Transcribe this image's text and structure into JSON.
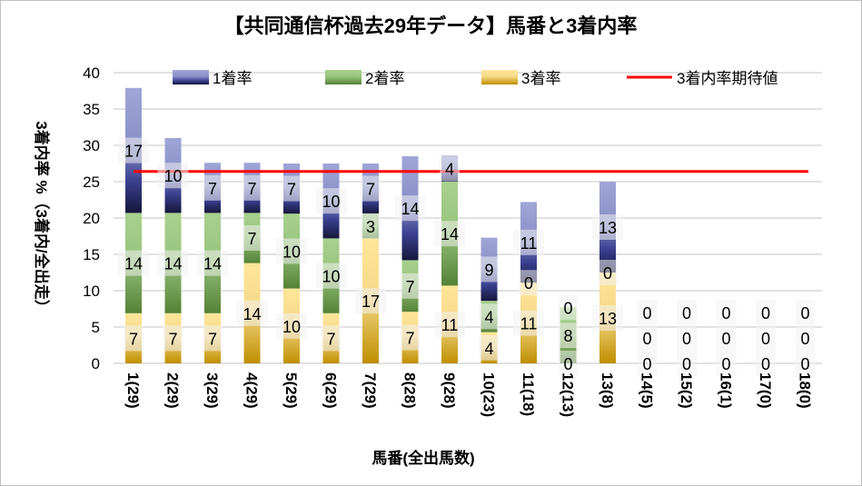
{
  "chart_data": {
    "type": "bar",
    "stacked": true,
    "title": "【共同通信杯過去29年データ】馬番と3着内率",
    "xlabel": "馬番(全出馬数)",
    "ylabel": "3着内率 %（3着内/全出走）",
    "ylim": [
      0,
      40
    ],
    "yticks": [
      0,
      5,
      10,
      15,
      20,
      25,
      30,
      35,
      40
    ],
    "grid": true,
    "legend_position": "top",
    "categories": [
      "1(29)",
      "2(29)",
      "3(29)",
      "4(29)",
      "5(29)",
      "6(29)",
      "7(29)",
      "8(28)",
      "9(28)",
      "10(23)",
      "11(18)",
      "12(13)",
      "13(8)",
      "14(5)",
      "15(2)",
      "16(1)",
      "17(0)",
      "18(0)"
    ],
    "series": [
      {
        "name": "3着率",
        "color": "#d4a017",
        "values": [
          6.9,
          6.9,
          6.9,
          13.8,
          10.3,
          6.9,
          17.2,
          7.1,
          10.7,
          4.3,
          11.1,
          0,
          12.5,
          0,
          0,
          0,
          0,
          0
        ],
        "labels": [
          "7",
          "7",
          "7",
          "14",
          "10",
          "7",
          "17",
          "7",
          "11",
          "4",
          "11",
          "0",
          "13",
          "0",
          "0",
          "0",
          "0",
          "0"
        ]
      },
      {
        "name": "2着率",
        "color": "#70ad47",
        "values": [
          13.8,
          13.8,
          13.8,
          6.9,
          10.3,
          10.3,
          3.4,
          7.1,
          14.3,
          4.3,
          0,
          7.7,
          0,
          0,
          0,
          0,
          0,
          0
        ],
        "labels": [
          "14",
          "14",
          "14",
          "7",
          "10",
          "10",
          "3",
          "7",
          "14",
          "4",
          "0",
          "8",
          "0",
          "0",
          "0",
          "0",
          "0",
          "0"
        ]
      },
      {
        "name": "1着率",
        "color": "#2f3590",
        "values": [
          17.2,
          10.3,
          6.9,
          6.9,
          6.9,
          10.3,
          6.9,
          14.3,
          3.6,
          8.7,
          11.1,
          0,
          12.5,
          0,
          0,
          0,
          0,
          0
        ],
        "labels": [
          "17",
          "10",
          "7",
          "7",
          "7",
          "10",
          "7",
          "14",
          "4",
          "9",
          "11",
          "0",
          "13",
          "0",
          "0",
          "0",
          "0",
          "0"
        ]
      }
    ],
    "reference_line": {
      "name": "3着内率期待値",
      "value": 26.4,
      "color": "#ff0000"
    },
    "legend_order": [
      "1着率",
      "2着率",
      "3着率",
      "3着内率期待値"
    ]
  }
}
